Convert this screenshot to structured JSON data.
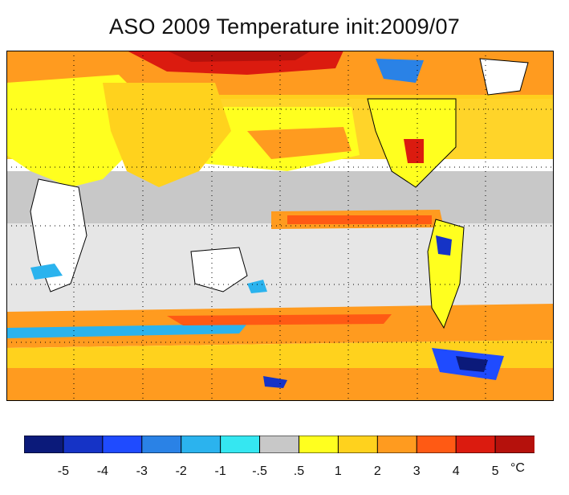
{
  "title": "ASO 2009 Temperature init:2009/07",
  "map": {
    "projection": "cylindrical equidistant, global",
    "grid": "dotted meridians and parallels",
    "ocean_background": "white",
    "coastlines": "black"
  },
  "colorbar": {
    "colors": [
      "#0b1a7a",
      "#1533c6",
      "#1f4bff",
      "#2a82e6",
      "#2bb3ee",
      "#35e7f1",
      "#c8c8c8",
      "#ffff1f",
      "#ffd21d",
      "#ff9b1f",
      "#ff5a14",
      "#db1b0f",
      "#b5110c"
    ],
    "tick_labels": [
      "-5",
      "-4",
      "-3",
      "-2",
      "-1",
      "-.5",
      ".5",
      "1",
      "2",
      "3",
      "4",
      "5"
    ],
    "unit": "°C"
  }
}
